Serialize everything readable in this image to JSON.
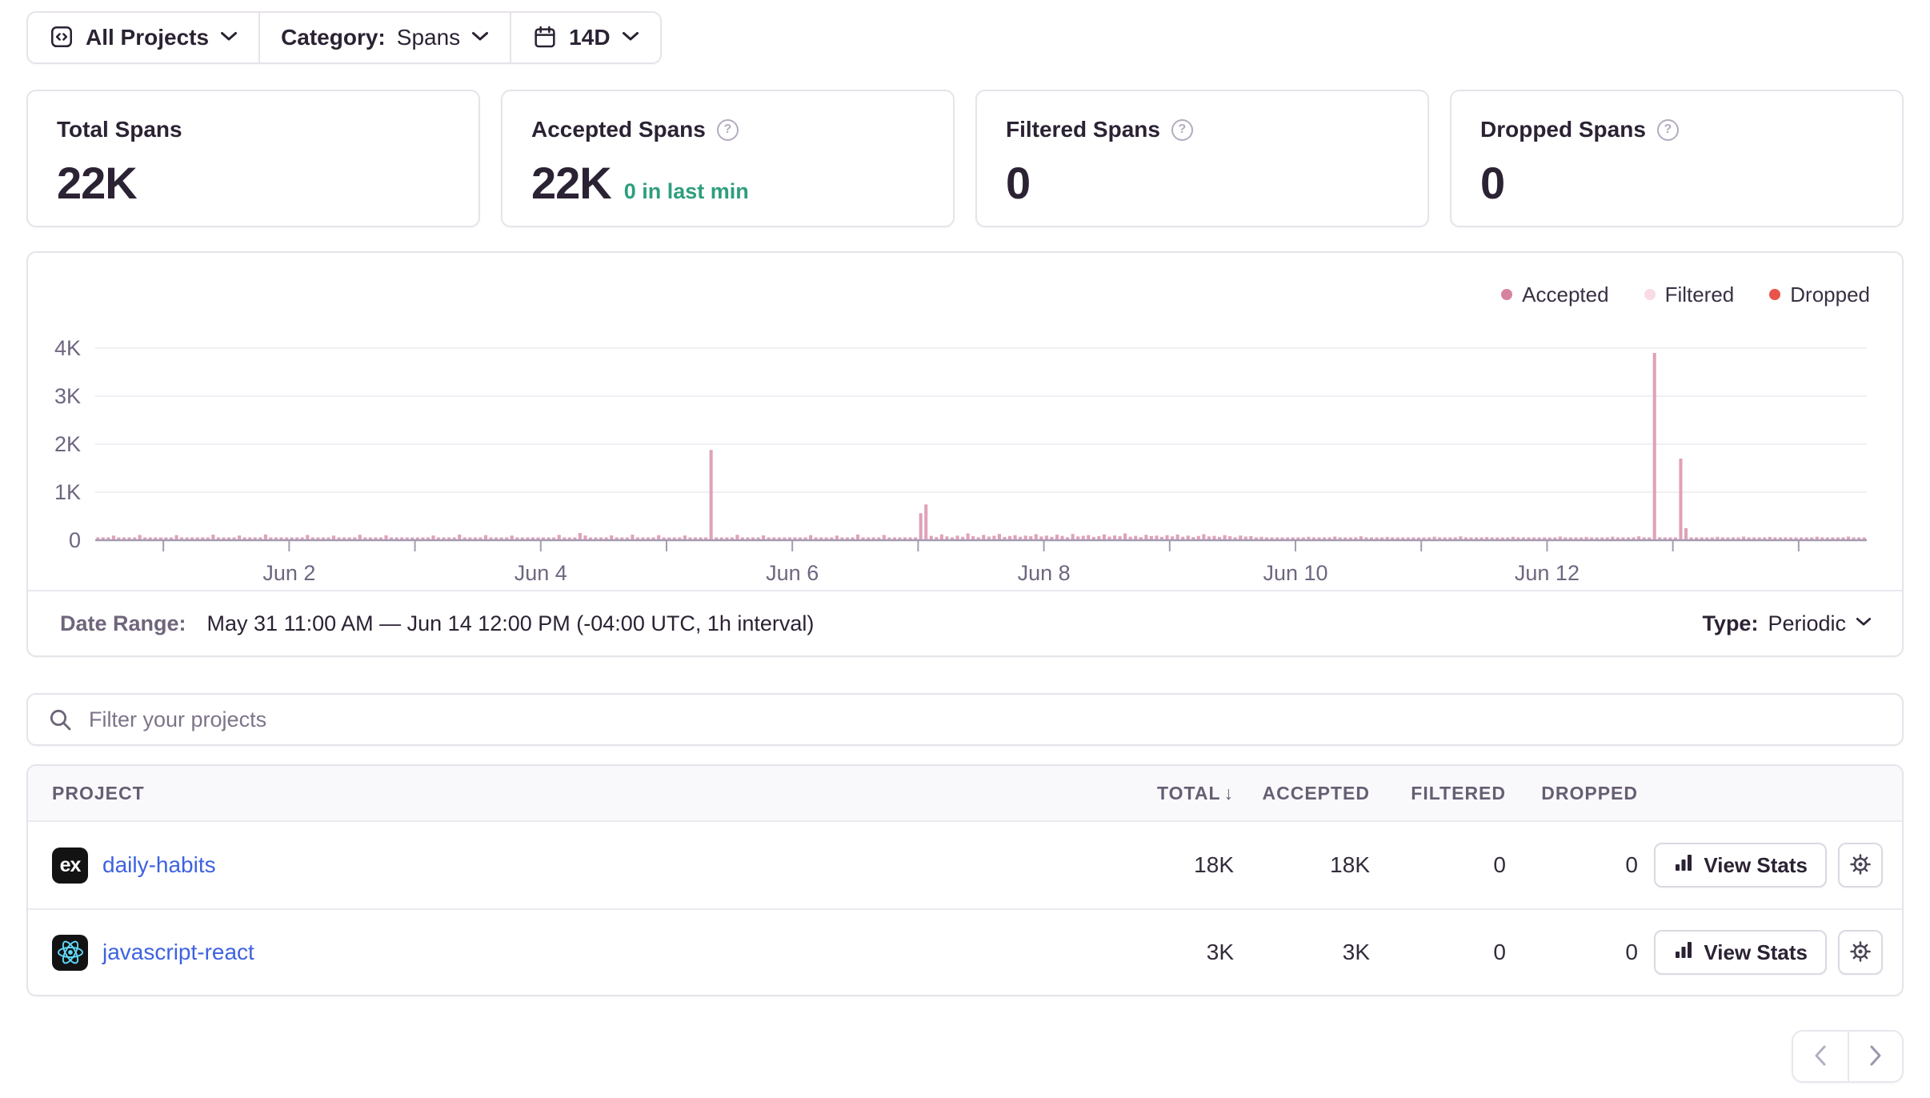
{
  "toolbar": {
    "projects_label": "All Projects",
    "category_label": "Category:",
    "category_value": "Spans",
    "date_period": "14D"
  },
  "cards": [
    {
      "title": "Total Spans",
      "value": "22K"
    },
    {
      "title": "Accepted Spans",
      "value": "22K",
      "sub": "0 in last min"
    },
    {
      "title": "Filtered Spans",
      "value": "0"
    },
    {
      "title": "Dropped Spans",
      "value": "0"
    }
  ],
  "chart_footer": {
    "date_range_label": "Date Range:",
    "date_range_value": "May 31 11:00 AM — Jun 14 12:00 PM (-04:00 UTC, 1h interval)",
    "type_label": "Type:",
    "type_value": "Periodic"
  },
  "filter": {
    "placeholder": "Filter your projects"
  },
  "table": {
    "columns": [
      {
        "label": "PROJECT"
      },
      {
        "label": "TOTAL",
        "sort": "desc"
      },
      {
        "label": "ACCEPTED"
      },
      {
        "label": "FILTERED"
      },
      {
        "label": "DROPPED"
      }
    ],
    "view_stats_label": "View Stats",
    "rows": [
      {
        "platform": "express",
        "name": "daily-habits",
        "total": "18K",
        "accepted": "18K",
        "filtered": "0",
        "dropped": "0"
      },
      {
        "platform": "react",
        "name": "javascript-react",
        "total": "3K",
        "accepted": "3K",
        "filtered": "0",
        "dropped": "0"
      }
    ]
  },
  "colors": {
    "bar_accepted": "#e0a1b9",
    "legend_accepted_dot": "#d6849e",
    "legend_filtered_dot": "#f9dbe5",
    "legend_dropped_dot": "#e8544b",
    "axis_line": "#a49cb0",
    "link_blue": "#3e62e0",
    "green_live": "#2e9e7d"
  },
  "chart_data": {
    "type": "bar",
    "title": "",
    "xlabel": "",
    "ylabel": "",
    "ylim": [
      0,
      4000
    ],
    "yticks": [
      "0",
      "1K",
      "2K",
      "3K",
      "4K"
    ],
    "grid": true,
    "legend_position": "top-right",
    "x_start": "May 31 11:00 AM",
    "x_end": "Jun 14 12:00 PM",
    "x_interval": "1h",
    "x_tick_labels": [
      "Jun 2",
      "Jun 4",
      "Jun 6",
      "Jun 8",
      "Jun 10",
      "Jun 12"
    ],
    "first_day_boundary_index": 13,
    "hours_per_day": 24,
    "legend": [
      {
        "name": "Accepted",
        "color": "#d6849e"
      },
      {
        "name": "Filtered",
        "color": "#f9dbe5"
      },
      {
        "name": "Dropped",
        "color": "#e8544b"
      }
    ],
    "series": [
      {
        "name": "Accepted",
        "color": "#e0a1b9",
        "values": [
          30,
          22,
          18,
          95,
          24,
          20,
          17,
          26,
          110,
          28,
          19,
          23,
          21,
          20,
          24,
          105,
          22,
          18,
          26,
          30,
          21,
          19,
          115,
          25,
          20,
          17,
          24,
          98,
          22,
          27,
          19,
          24,
          120,
          26,
          21,
          18,
          23,
          22,
          19,
          26,
          108,
          24,
          18,
          21,
          28,
          95,
          23,
          20,
          25,
          17,
          112,
          26,
          22,
          19,
          24,
          102,
          21,
          27,
          18,
          23,
          20,
          19,
          25,
          21,
          98,
          23,
          17,
          26,
          22,
          118,
          20,
          24,
          18,
          27,
          105,
          21,
          25,
          19,
          23,
          96,
          26,
          20,
          22,
          17,
          24,
          21,
          26,
          18,
          110,
          24,
          20,
          23,
          150,
          98,
          25,
          19,
          22,
          26,
          100,
          21,
          17,
          24,
          115,
          20,
          26,
          22,
          18,
          105,
          23,
          24,
          20,
          26,
          98,
          22,
          18,
          25,
          21,
          1880,
          30,
          24,
          19,
          26,
          112,
          22,
          20,
          17,
          25,
          100,
          23,
          26,
          19,
          21,
          24,
          20,
          25,
          18,
          105,
          23,
          21,
          26,
          19,
          96,
          24,
          20,
          27,
          118,
          22,
          18,
          25,
          21,
          108,
          24,
          19,
          26,
          22,
          17,
          23,
          560,
          745,
          90,
          65,
          120,
          80,
          55,
          95,
          70,
          140,
          85,
          60,
          110,
          75,
          92,
          130,
          68,
          88,
          105,
          72,
          95,
          82,
          125,
          78,
          95,
          70,
          115,
          88,
          62,
          130,
          78,
          92,
          105,
          68,
          85,
          120,
          75,
          98,
          82,
          140,
          72,
          90,
          65,
          112,
          86,
          95,
          70,
          105,
          80,
          118,
          72,
          95,
          65,
          88,
          125,
          78,
          90,
          68,
          105,
          82,
          60,
          96,
          75,
          85,
          55,
          70,
          48,
          38,
          30,
          25,
          35,
          28,
          22,
          18,
          70,
          24,
          20,
          26,
          17,
          75,
          23,
          19,
          25,
          21,
          80,
          18,
          24,
          20,
          26,
          68,
          22,
          19,
          23,
          25,
          17,
          21,
          19,
          24,
          72,
          20,
          26,
          18,
          22,
          78,
          25,
          21,
          17,
          23,
          65,
          26,
          20,
          24,
          18,
          70,
          22,
          25,
          19,
          21,
          26,
          23,
          21,
          18,
          75,
          23,
          25,
          19,
          26,
          68,
          22,
          20,
          24,
          17,
          72,
          21,
          26,
          23,
          19,
          80,
          24,
          22,
          3900,
          60,
          26,
          20,
          24,
          1700,
          250,
          22,
          19,
          25,
          21,
          26,
          70,
          18,
          23,
          20,
          26,
          75,
          22,
          24,
          17,
          21,
          68,
          25,
          19,
          23,
          26,
          20,
          22,
          19,
          25,
          72,
          21,
          26,
          18,
          24,
          20,
          75,
          23,
          19,
          26
        ]
      },
      {
        "name": "Filtered",
        "color": "#f9dbe5",
        "values_constant": 0
      },
      {
        "name": "Dropped",
        "color": "#e8544b",
        "values_constant": 0
      }
    ]
  },
  "pagination": {
    "prev": "previous",
    "next": "next"
  }
}
